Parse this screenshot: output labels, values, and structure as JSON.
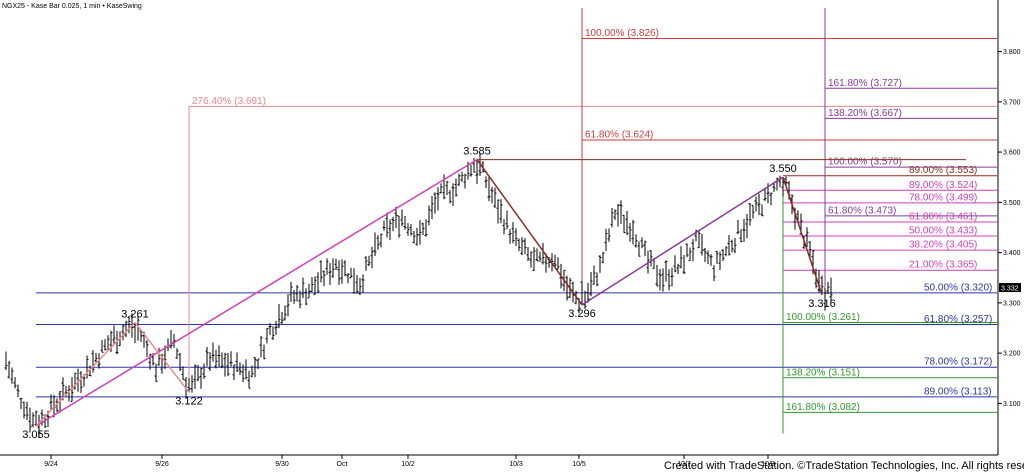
{
  "header": "NGX25 - Kase Bar 0.025, 1 min  • KaseSwing",
  "credit": "Created with TradeStation. ©TradeStation Technologies, Inc. All rights reserved.",
  "last_price": "3.332",
  "colors": {
    "red": "#d03b3b",
    "salmon": "#e88b8b",
    "purple": "#8a3a9b",
    "magenta": "#d13fb9",
    "blue": "#2b36a8",
    "green": "#2f9a2f",
    "brown": "#8b2d1f",
    "bars": "#000000"
  },
  "chart_data": {
    "type": "bar",
    "ylim": [
      3.03,
      3.88
    ],
    "y_ticks": [
      "3.800",
      "3.700",
      "3.600",
      "3.500",
      "3.400",
      "3.300",
      "3.200",
      "3.100"
    ],
    "x_ticks": [
      {
        "label": "9/24",
        "i": 15
      },
      {
        "label": "9/26",
        "i": 52
      },
      {
        "label": "9/30",
        "i": 92
      },
      {
        "label": "Oct",
        "i": 112
      },
      {
        "label": "10/2",
        "i": 134
      },
      {
        "label": "10/3",
        "i": 170
      },
      {
        "label": "10/5",
        "i": 191
      },
      {
        "label": "10/7",
        "i": 226
      },
      {
        "label": "10/8",
        "i": 254
      }
    ],
    "bars_count": 276,
    "swings": [
      {
        "label": "3.055",
        "i": 10,
        "price": 3.055,
        "pos": "below"
      },
      {
        "label": "3.261",
        "i": 43,
        "price": 3.261,
        "pos": "above"
      },
      {
        "label": "3.122",
        "i": 61,
        "price": 3.122,
        "pos": "below"
      },
      {
        "label": "3.585",
        "i": 157,
        "price": 3.585,
        "pos": "above"
      },
      {
        "label": "3.296",
        "i": 192,
        "price": 3.296,
        "pos": "below"
      },
      {
        "label": "3.550",
        "i": 259,
        "price": 3.55,
        "pos": "above"
      },
      {
        "label": "3.316",
        "i": 272,
        "price": 3.316,
        "pos": "below"
      }
    ],
    "trendlines": [
      {
        "from": [
          10,
          3.055
        ],
        "to": [
          157,
          3.585
        ],
        "color": "magenta"
      },
      {
        "from": [
          10,
          3.055
        ],
        "to": [
          43,
          3.261
        ],
        "color": "salmon"
      },
      {
        "from": [
          43,
          3.261
        ],
        "to": [
          61,
          3.122
        ],
        "color": "salmon"
      },
      {
        "from": [
          157,
          3.585
        ],
        "to": [
          192,
          3.296
        ],
        "color": "brown"
      },
      {
        "from": [
          192,
          3.296
        ],
        "to": [
          259,
          3.55
        ],
        "color": "purple"
      },
      {
        "from": [
          259,
          3.55
        ],
        "to": [
          272,
          3.316
        ],
        "color": "brown"
      },
      {
        "from": [
          157,
          3.585
        ],
        "to": [
          320,
          3.585
        ],
        "color": "brown",
        "thin": true
      }
    ],
    "vlines": [
      {
        "i": 61,
        "from": 3.122,
        "to": 3.691,
        "color": "salmon"
      },
      {
        "i": 192,
        "from": 3.296,
        "to": 3.875,
        "color": "red"
      },
      {
        "i": 259,
        "from": 3.55,
        "to": 3.04,
        "color": "green"
      },
      {
        "i": 273,
        "from": 3.31,
        "to": 3.875,
        "color": "purple"
      }
    ],
    "fib_levels": [
      {
        "label": "100.00% (3.826)",
        "price": 3.826,
        "color": "red",
        "x_start": 192,
        "label_x": 193
      },
      {
        "label": "276.40% (3.691)",
        "price": 3.691,
        "color": "salmon",
        "x_start": 61,
        "label_x": 62
      },
      {
        "label": "61.80% (3.624)",
        "price": 3.624,
        "color": "red",
        "x_start": 192,
        "label_x": 193
      },
      {
        "label": "161.80% (3.727)",
        "price": 3.727,
        "color": "purple",
        "x_start": 273,
        "label_x": 274
      },
      {
        "label": "138.20% (3.667)",
        "price": 3.667,
        "color": "purple",
        "x_start": 273,
        "label_x": 274
      },
      {
        "label": "100.00% (3.570)",
        "price": 3.57,
        "color": "purple",
        "x_start": 273,
        "label_x": 274
      },
      {
        "label": "89.00% (3.553)",
        "price": 3.553,
        "color": "brown",
        "x_start": 259,
        "label_x": 301
      },
      {
        "label": "89.00% (3.524)",
        "price": 3.524,
        "color": "magenta",
        "x_start": 259,
        "label_x": 301
      },
      {
        "label": "78.00% (3.499)",
        "price": 3.499,
        "color": "magenta",
        "x_start": 259,
        "label_x": 301
      },
      {
        "label": "61.80% (3.473)",
        "price": 3.473,
        "color": "purple",
        "x_start": 273,
        "label_x": 274
      },
      {
        "label": "61.80% (3.461)",
        "price": 3.461,
        "color": "magenta",
        "x_start": 259,
        "label_x": 301
      },
      {
        "label": "50.00% (3.433)",
        "price": 3.433,
        "color": "magenta",
        "x_start": 259,
        "label_x": 301
      },
      {
        "label": "38.20% (3.405)",
        "price": 3.405,
        "color": "magenta",
        "x_start": 259,
        "label_x": 301
      },
      {
        "label": "21.00% (3.365)",
        "price": 3.365,
        "color": "magenta",
        "x_start": 259,
        "label_x": 301
      },
      {
        "label": "50.00% (3.320)",
        "price": 3.32,
        "color": "blue",
        "x_start": 10,
        "label_x": 306
      },
      {
        "label": "100.00% (3.261)",
        "price": 3.261,
        "color": "green",
        "x_start": 259,
        "label_x": 260
      },
      {
        "label": "61.80% (3.257)",
        "price": 3.257,
        "color": "blue",
        "x_start": 10,
        "label_x": 306
      },
      {
        "label": "78.00% (3.172)",
        "price": 3.172,
        "color": "blue",
        "x_start": 10,
        "label_x": 306
      },
      {
        "label": "138.20% (3.151)",
        "price": 3.151,
        "color": "green",
        "x_start": 259,
        "label_x": 260
      },
      {
        "label": "89.00% (3.113)",
        "price": 3.113,
        "color": "blue",
        "x_start": 10,
        "label_x": 306
      },
      {
        "label": "161.80% (3.082)",
        "price": 3.082,
        "color": "green",
        "x_start": 259,
        "label_x": 260
      }
    ],
    "anchors": [
      [
        0,
        3.185
      ],
      [
        4,
        3.12
      ],
      [
        10,
        3.055
      ],
      [
        18,
        3.11
      ],
      [
        26,
        3.16
      ],
      [
        34,
        3.22
      ],
      [
        43,
        3.261
      ],
      [
        50,
        3.17
      ],
      [
        56,
        3.225
      ],
      [
        61,
        3.122
      ],
      [
        68,
        3.19
      ],
      [
        76,
        3.175
      ],
      [
        82,
        3.16
      ],
      [
        88,
        3.245
      ],
      [
        95,
        3.31
      ],
      [
        102,
        3.33
      ],
      [
        110,
        3.38
      ],
      [
        118,
        3.34
      ],
      [
        126,
        3.44
      ],
      [
        132,
        3.47
      ],
      [
        138,
        3.43
      ],
      [
        144,
        3.51
      ],
      [
        150,
        3.53
      ],
      [
        157,
        3.585
      ],
      [
        163,
        3.5
      ],
      [
        170,
        3.42
      ],
      [
        176,
        3.38
      ],
      [
        183,
        3.39
      ],
      [
        187,
        3.33
      ],
      [
        192,
        3.296
      ],
      [
        198,
        3.37
      ],
      [
        203,
        3.48
      ],
      [
        209,
        3.45
      ],
      [
        214,
        3.38
      ],
      [
        219,
        3.35
      ],
      [
        224,
        3.37
      ],
      [
        230,
        3.42
      ],
      [
        236,
        3.37
      ],
      [
        242,
        3.42
      ],
      [
        248,
        3.47
      ],
      [
        254,
        3.51
      ],
      [
        259,
        3.55
      ],
      [
        263,
        3.48
      ],
      [
        268,
        3.4
      ],
      [
        272,
        3.316
      ],
      [
        275,
        3.332
      ]
    ]
  }
}
